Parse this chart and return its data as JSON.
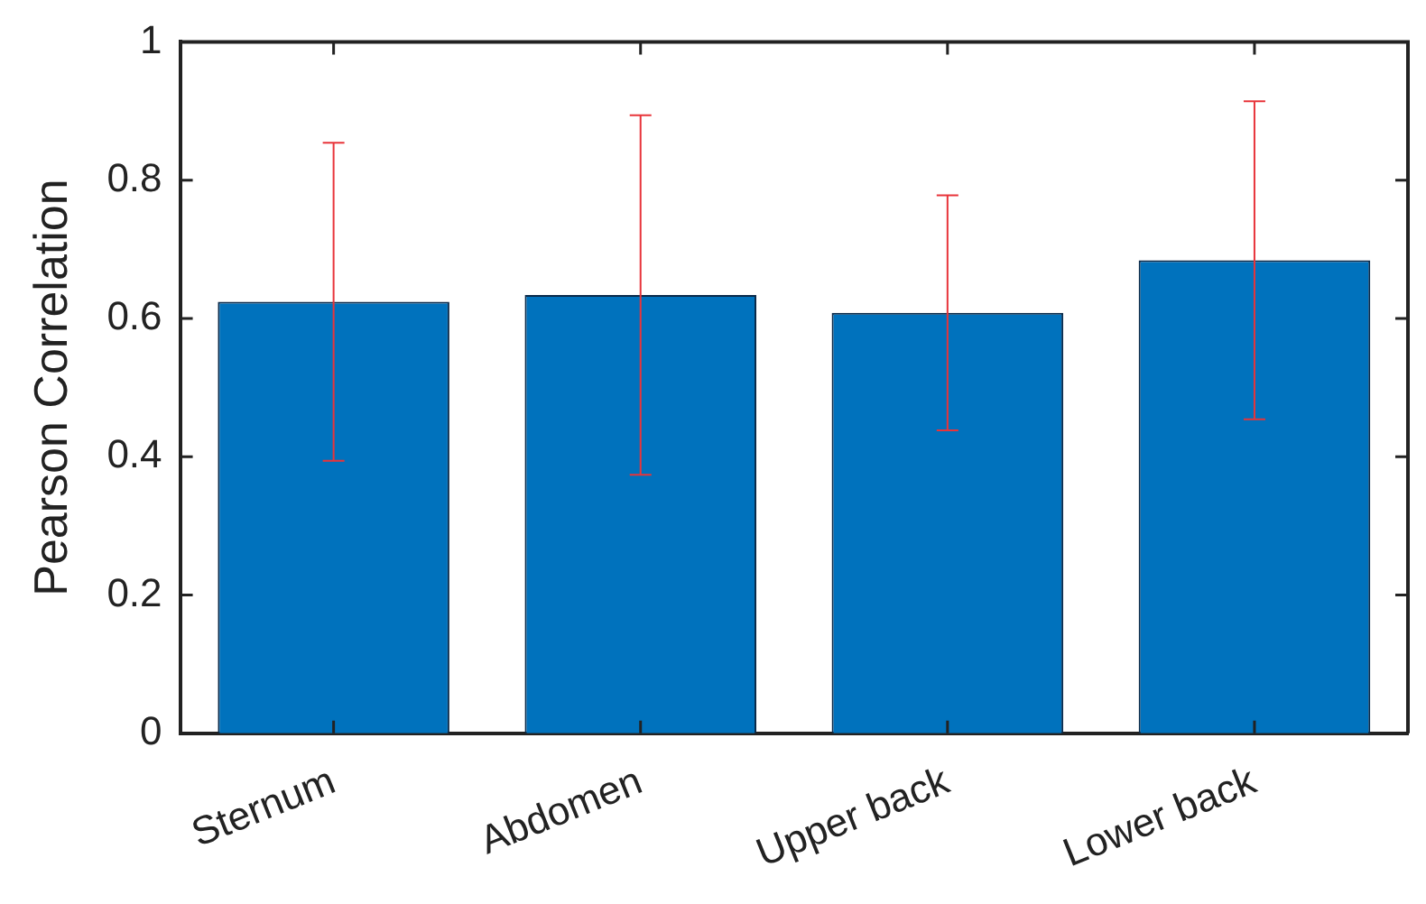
{
  "chart_data": {
    "type": "bar",
    "ylabel": "Pearson Correlation",
    "categories": [
      "Sternum",
      "Abdomen",
      "Upper back",
      "Lower back"
    ],
    "values": [
      0.624,
      0.634,
      0.608,
      0.684
    ],
    "errors": [
      0.23,
      0.26,
      0.17,
      0.23
    ],
    "color": "#0072bd",
    "ylim": [
      0,
      1
    ],
    "yticks": [
      0,
      0.2,
      0.4,
      0.6,
      0.8,
      1
    ],
    "grid": false,
    "legend": false
  }
}
